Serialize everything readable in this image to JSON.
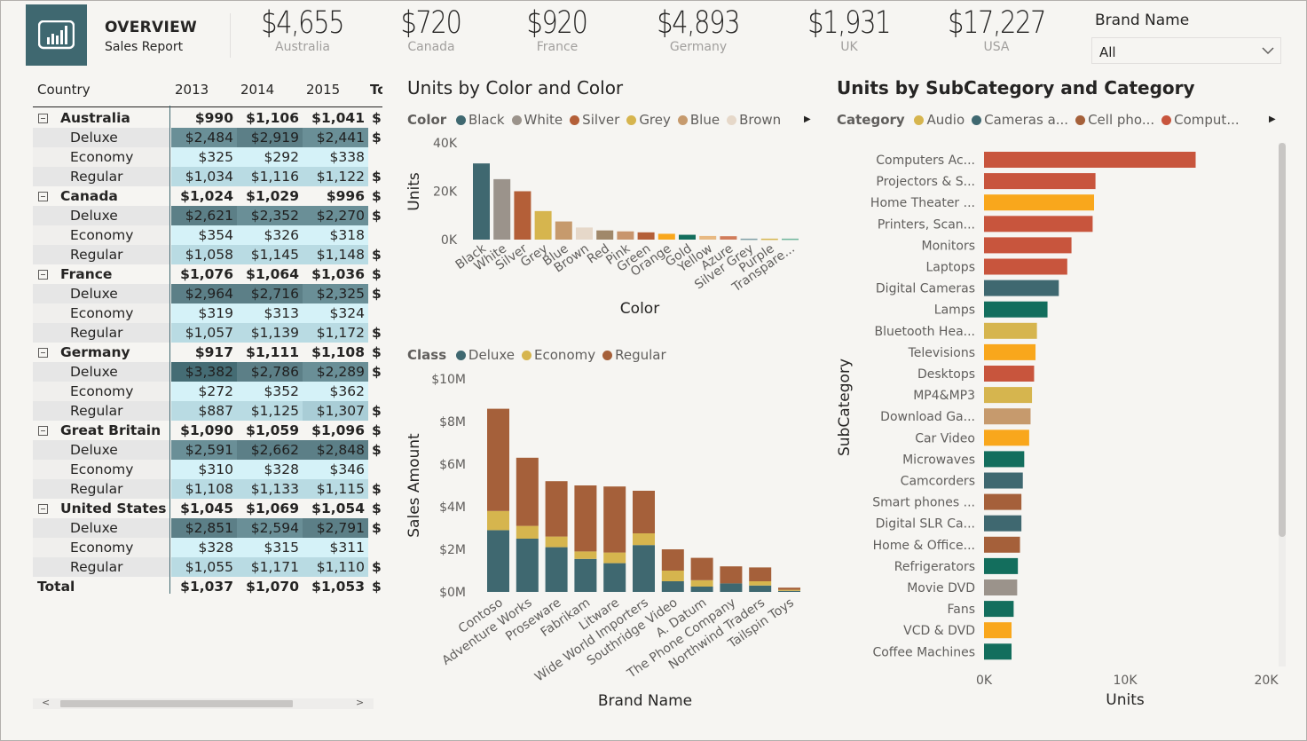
{
  "header": {
    "title": "OVERVIEW",
    "subtitle": "Sales Report",
    "icon": "bar-chart-icon",
    "brand_color": "#3f6870"
  },
  "kpis": [
    {
      "value": "$4,655",
      "label": "Australia"
    },
    {
      "value": "$720",
      "label": "Canada"
    },
    {
      "value": "$920",
      "label": "France"
    },
    {
      "value": "$4,893",
      "label": "Germany"
    },
    {
      "value": "$1,931",
      "label": "UK"
    },
    {
      "value": "$17,227",
      "label": "USA"
    }
  ],
  "slicer": {
    "title": "Brand Name",
    "value": "All"
  },
  "matrix": {
    "headers": [
      "Country",
      "2013",
      "2014",
      "2015",
      "To"
    ],
    "rows": [
      {
        "type": "group",
        "label": "Australia",
        "values": [
          "$990",
          "$1,106",
          "$1,041"
        ],
        "total": "$"
      },
      {
        "type": "sub",
        "label": "Deluxe",
        "values": [
          "$2,484",
          "$2,919",
          "$2,441"
        ],
        "total": "$"
      },
      {
        "type": "sub",
        "label": "Economy",
        "values": [
          "$325",
          "$292",
          "$338"
        ],
        "total": ""
      },
      {
        "type": "sub",
        "label": "Regular",
        "values": [
          "$1,034",
          "$1,116",
          "$1,122"
        ],
        "total": "$"
      },
      {
        "type": "group",
        "label": "Canada",
        "values": [
          "$1,024",
          "$1,029",
          "$996"
        ],
        "total": "$"
      },
      {
        "type": "sub",
        "label": "Deluxe",
        "values": [
          "$2,621",
          "$2,352",
          "$2,270"
        ],
        "total": "$"
      },
      {
        "type": "sub",
        "label": "Economy",
        "values": [
          "$354",
          "$326",
          "$318"
        ],
        "total": ""
      },
      {
        "type": "sub",
        "label": "Regular",
        "values": [
          "$1,058",
          "$1,145",
          "$1,148"
        ],
        "total": "$"
      },
      {
        "type": "group",
        "label": "France",
        "values": [
          "$1,076",
          "$1,064",
          "$1,036"
        ],
        "total": "$"
      },
      {
        "type": "sub",
        "label": "Deluxe",
        "values": [
          "$2,964",
          "$2,716",
          "$2,325"
        ],
        "total": "$"
      },
      {
        "type": "sub",
        "label": "Economy",
        "values": [
          "$319",
          "$313",
          "$324"
        ],
        "total": ""
      },
      {
        "type": "sub",
        "label": "Regular",
        "values": [
          "$1,057",
          "$1,139",
          "$1,172"
        ],
        "total": "$"
      },
      {
        "type": "group",
        "label": "Germany",
        "values": [
          "$917",
          "$1,111",
          "$1,108"
        ],
        "total": "$"
      },
      {
        "type": "sub",
        "label": "Deluxe",
        "values": [
          "$3,382",
          "$2,786",
          "$2,289"
        ],
        "total": "$"
      },
      {
        "type": "sub",
        "label": "Economy",
        "values": [
          "$272",
          "$352",
          "$362"
        ],
        "total": ""
      },
      {
        "type": "sub",
        "label": "Regular",
        "values": [
          "$887",
          "$1,125",
          "$1,307"
        ],
        "total": "$"
      },
      {
        "type": "group",
        "label": "Great Britain",
        "values": [
          "$1,090",
          "$1,059",
          "$1,096"
        ],
        "total": "$"
      },
      {
        "type": "sub",
        "label": "Deluxe",
        "values": [
          "$2,591",
          "$2,662",
          "$2,848"
        ],
        "total": "$"
      },
      {
        "type": "sub",
        "label": "Economy",
        "values": [
          "$310",
          "$328",
          "$346"
        ],
        "total": ""
      },
      {
        "type": "sub",
        "label": "Regular",
        "values": [
          "$1,108",
          "$1,133",
          "$1,115"
        ],
        "total": "$"
      },
      {
        "type": "group",
        "label": "United States",
        "values": [
          "$1,045",
          "$1,069",
          "$1,054"
        ],
        "total": "$"
      },
      {
        "type": "sub",
        "label": "Deluxe",
        "values": [
          "$2,851",
          "$2,594",
          "$2,791"
        ],
        "total": "$"
      },
      {
        "type": "sub",
        "label": "Economy",
        "values": [
          "$328",
          "$315",
          "$311"
        ],
        "total": ""
      },
      {
        "type": "sub",
        "label": "Regular",
        "values": [
          "$1,055",
          "$1,171",
          "$1,110"
        ],
        "total": "$"
      },
      {
        "type": "total",
        "label": "Total",
        "values": [
          "$1,037",
          "$1,070",
          "$1,053"
        ],
        "total": "$"
      }
    ],
    "scroll_left": "<",
    "scroll_right": ">"
  },
  "chart_data": [
    {
      "type": "bar",
      "title": "Units by Color and Color",
      "legend_title": "Color",
      "legend": [
        {
          "name": "Black",
          "color": "#3f6870"
        },
        {
          "name": "White",
          "color": "#9b938b"
        },
        {
          "name": "Silver",
          "color": "#b45f38"
        },
        {
          "name": "Grey",
          "color": "#d6b54e"
        },
        {
          "name": "Blue",
          "color": "#c69a6d"
        },
        {
          "name": "Brown",
          "color": "#e6d8c9"
        }
      ],
      "categories": [
        "Black",
        "White",
        "Silver",
        "Grey",
        "Blue",
        "Brown",
        "Red",
        "Pink",
        "Green",
        "Orange",
        "Gold",
        "Yellow",
        "Azure",
        "Silver Grey",
        "Purple",
        "Transpare..."
      ],
      "values": [
        31500,
        25000,
        20000,
        11800,
        7500,
        5000,
        3800,
        3400,
        3000,
        2400,
        2000,
        1500,
        1400,
        400,
        400,
        400
      ],
      "colors": [
        "#3f6870",
        "#9b938b",
        "#b45f38",
        "#d6b54e",
        "#c69a6d",
        "#e6d8c9",
        "#a0886a",
        "#c8956d",
        "#b45f38",
        "#f9a71c",
        "#136e5d",
        "#e8b982",
        "#d17c5a",
        "#7f9fa6",
        "#d6b54e",
        "#6fb59c"
      ],
      "xlabel": "Color",
      "ylabel": "Units",
      "yticks": [
        "0K",
        "20K",
        "40K"
      ],
      "ylim": [
        0,
        40000
      ]
    },
    {
      "type": "bar",
      "stacked": true,
      "legend_title": "Class",
      "categories": [
        "Contoso",
        "Adventure Works",
        "Proseware",
        "Fabrikam",
        "Litware",
        "Wide World Importers",
        "Southridge Video",
        "A. Datum",
        "The Phone Company",
        "Northwind Traders",
        "Tailspin Toys"
      ],
      "series": [
        {
          "name": "Deluxe",
          "color": "#3f6870",
          "values": [
            2.9,
            2.5,
            2.1,
            1.55,
            1.35,
            2.2,
            0.5,
            0.25,
            0.4,
            0.3,
            0.05
          ]
        },
        {
          "name": "Economy",
          "color": "#d6b54e",
          "values": [
            0.9,
            0.6,
            0.5,
            0.35,
            0.5,
            0.55,
            0.5,
            0.3,
            0.0,
            0.2,
            0.05
          ]
        },
        {
          "name": "Regular",
          "color": "#a5603a",
          "values": [
            4.8,
            3.2,
            2.6,
            3.1,
            3.1,
            2.0,
            1.0,
            1.05,
            0.8,
            0.65,
            0.1
          ]
        }
      ],
      "xlabel": "Brand Name",
      "ylabel": "Sales Amount",
      "yticks": [
        "$0M",
        "$2M",
        "$4M",
        "$6M",
        "$8M",
        "$10M"
      ],
      "ylim": [
        0,
        10
      ]
    },
    {
      "type": "bar",
      "orientation": "horizontal",
      "title": "Units by SubCategory and Category",
      "legend_title": "Category",
      "legend": [
        {
          "name": "Audio",
          "color": "#d6b54e"
        },
        {
          "name": "Cameras a...",
          "color": "#3f6870"
        },
        {
          "name": "Cell pho...",
          "color": "#a5603a"
        },
        {
          "name": "Comput...",
          "color": "#c8553d"
        }
      ],
      "categories": [
        "Computers Ac...",
        "Projectors & S...",
        "Home Theater ...",
        "Printers, Scan...",
        "Monitors",
        "Laptops",
        "Digital Cameras",
        "Lamps",
        "Bluetooth Hea...",
        "Televisions",
        "Desktops",
        "MP4&MP3",
        "Download Ga...",
        "Car Video",
        "Microwaves",
        "Camcorders",
        "Smart phones ...",
        "Digital SLR Ca...",
        "Home & Office...",
        "Refrigerators",
        "Movie DVD",
        "Fans",
        "VCD & DVD",
        "Coffee Machines"
      ],
      "values": [
        15000,
        7900,
        7800,
        7700,
        6200,
        5900,
        5300,
        4500,
        3750,
        3650,
        3550,
        3400,
        3300,
        3200,
        2850,
        2750,
        2650,
        2650,
        2550,
        2400,
        2350,
        2100,
        1950,
        1950
      ],
      "colors": [
        "#c8553d",
        "#c8553d",
        "#f9a71c",
        "#c8553d",
        "#c8553d",
        "#c8553d",
        "#3f6870",
        "#136e5d",
        "#d6b54e",
        "#f9a71c",
        "#c8553d",
        "#d6b54e",
        "#c69a6d",
        "#f9a71c",
        "#136e5d",
        "#3f6870",
        "#a5603a",
        "#3f6870",
        "#a5603a",
        "#136e5d",
        "#9b938b",
        "#136e5d",
        "#f9a71c",
        "#136e5d"
      ],
      "xlabel": "Units",
      "ylabel": "SubCategory",
      "xticks": [
        "0K",
        "10K",
        "20K"
      ],
      "xlim": [
        0,
        20000
      ]
    }
  ]
}
